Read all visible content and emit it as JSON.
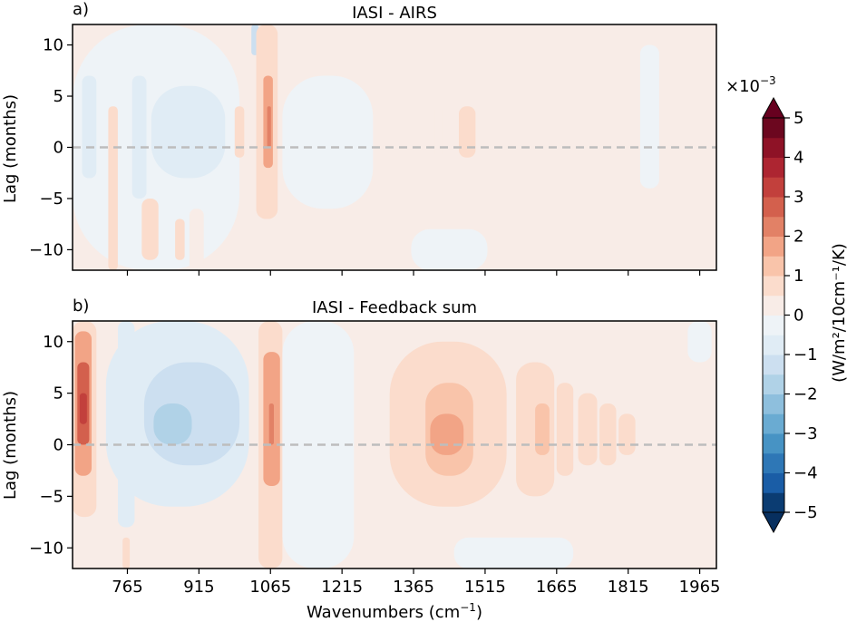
{
  "figure": {
    "xlabel": "Wavenumbers (cm",
    "xlabel_sup": "−1",
    "xlabel_close": ")"
  },
  "colorbar": {
    "multiplier": "×10",
    "multiplier_exp": "−3",
    "label": "(W/m²/10cm⁻¹/K)",
    "tick_labels": [
      "5",
      "4",
      "3",
      "2",
      "1",
      "0",
      "−1",
      "−2",
      "−3",
      "−4",
      "−5"
    ],
    "tick_values": [
      5,
      4,
      3,
      2,
      1,
      0,
      -1,
      -2,
      -3,
      -4,
      -5
    ],
    "levels": [
      -5,
      -4.5,
      -4,
      -3.5,
      -3,
      -2.5,
      -2,
      -1.5,
      -1,
      -0.5,
      0,
      0.5,
      1,
      1.5,
      2,
      2.5,
      3,
      3.5,
      4,
      4.5,
      5
    ],
    "colors": [
      "#0b3c72",
      "#1a5da6",
      "#2e77b6",
      "#4793c4",
      "#6aabd2",
      "#8ebfdd",
      "#b0d2e7",
      "#ccdff0",
      "#e0ecf5",
      "#eef3f7",
      "#f8ece7",
      "#fbdccc",
      "#f9c4aa",
      "#f2a486",
      "#e28166",
      "#d3604d",
      "#c2403c",
      "#ad2531",
      "#8e1226",
      "#6c071f"
    ],
    "extend_low_color": "#072f5f",
    "extend_high_color": "#67001f"
  },
  "chart_data": [
    {
      "type": "heatmap",
      "panel_label": "a)",
      "title": "IASI - AIRS",
      "xlabel": "Wavenumbers (cm⁻¹)",
      "ylabel": "Lag (months)",
      "xlim": [
        650,
        2000
      ],
      "ylim": [
        -12,
        12
      ],
      "xticks": [
        765,
        915,
        1065,
        1215,
        1365,
        1515,
        1665,
        1815,
        1965
      ],
      "xtick_labels_shown": false,
      "yticks": [
        10,
        5,
        0,
        -5,
        -10
      ],
      "ytick_labels": [
        "10",
        "5",
        "0",
        "−5",
        "−10"
      ],
      "zero_lag_line": true,
      "background_value": 0.2,
      "features": [
        {
          "x": [
            650,
            1000
          ],
          "y": [
            -12,
            12
          ],
          "value": -0.2
        },
        {
          "x": [
            670,
            700
          ],
          "y": [
            -3,
            7
          ],
          "value": -0.6
        },
        {
          "x": [
            720,
            790
          ],
          "y": [
            -4,
            3
          ],
          "value": -0.3
        },
        {
          "x": [
            725,
            745
          ],
          "y": [
            -12,
            4
          ],
          "value": 0.5
        },
        {
          "x": [
            775,
            805
          ],
          "y": [
            -5,
            7
          ],
          "value": -0.6
        },
        {
          "x": [
            815,
            970
          ],
          "y": [
            -3,
            6
          ],
          "value": -0.6
        },
        {
          "x": [
            835,
            880
          ],
          "y": [
            -1,
            3
          ],
          "value": -0.9
        },
        {
          "x": [
            795,
            830
          ],
          "y": [
            -11,
            -5
          ],
          "value": 0.5
        },
        {
          "x": [
            865,
            885
          ],
          "y": [
            -11,
            -7
          ],
          "value": 0.5
        },
        {
          "x": [
            895,
            925
          ],
          "y": [
            -12,
            -6
          ],
          "value": 0.4
        },
        {
          "x": [
            990,
            1010
          ],
          "y": [
            -1,
            4
          ],
          "value": 0.5
        },
        {
          "x": [
            1025,
            1040
          ],
          "y": [
            9,
            12
          ],
          "value": -1.1
        },
        {
          "x": [
            1035,
            1080
          ],
          "y": [
            -7,
            12
          ],
          "value": 0.6
        },
        {
          "x": [
            1050,
            1070
          ],
          "y": [
            -2,
            7
          ],
          "value": 1.6
        },
        {
          "x": [
            1058,
            1066
          ],
          "y": [
            0,
            4
          ],
          "value": 2.2
        },
        {
          "x": [
            1090,
            1280
          ],
          "y": [
            -6,
            7
          ],
          "value": -0.2
        },
        {
          "x": [
            1410,
            1425
          ],
          "y": [
            -1,
            4
          ],
          "value": 0.4
        },
        {
          "x": [
            1460,
            1495
          ],
          "y": [
            -1,
            4
          ],
          "value": 0.5
        },
        {
          "x": [
            1360,
            1520
          ],
          "y": [
            -12,
            -8
          ],
          "value": -0.2
        },
        {
          "x": [
            1840,
            1880
          ],
          "y": [
            -4,
            10
          ],
          "value": -0.3
        }
      ]
    },
    {
      "type": "heatmap",
      "panel_label": "b)",
      "title": "IASI - Feedback sum",
      "xlabel": "Wavenumbers (cm⁻¹)",
      "ylabel": "Lag (months)",
      "xlim": [
        650,
        2000
      ],
      "ylim": [
        -12,
        12
      ],
      "xticks": [
        765,
        915,
        1065,
        1215,
        1365,
        1515,
        1665,
        1815,
        1965
      ],
      "xtick_labels": [
        "765",
        "915",
        "1065",
        "1215",
        "1365",
        "1515",
        "1665",
        "1815",
        "1965"
      ],
      "yticks": [
        10,
        5,
        0,
        -5,
        -10
      ],
      "ytick_labels": [
        "10",
        "5",
        "0",
        "−5",
        "−10"
      ],
      "zero_lag_line": true,
      "background_value": 0.2,
      "features": [
        {
          "x": [
            650,
            700
          ],
          "y": [
            -7,
            12
          ],
          "value": 0.8
        },
        {
          "x": [
            655,
            690
          ],
          "y": [
            -3,
            11
          ],
          "value": 1.6
        },
        {
          "x": [
            660,
            685
          ],
          "y": [
            0,
            8
          ],
          "value": 2.6
        },
        {
          "x": [
            665,
            680
          ],
          "y": [
            2,
            5
          ],
          "value": 3.2
        },
        {
          "x": [
            720,
            1020
          ],
          "y": [
            -6,
            12
          ],
          "value": -0.6
        },
        {
          "x": [
            800,
            1000
          ],
          "y": [
            -2,
            8
          ],
          "value": -1.3
        },
        {
          "x": [
            820,
            900
          ],
          "y": [
            0,
            4
          ],
          "value": -1.8
        },
        {
          "x": [
            745,
            780
          ],
          "y": [
            -8,
            12
          ],
          "value": -0.8
        },
        {
          "x": [
            755,
            770
          ],
          "y": [
            -12,
            -9
          ],
          "value": 0.6
        },
        {
          "x": [
            1040,
            1090
          ],
          "y": [
            -12,
            12
          ],
          "value": 0.6
        },
        {
          "x": [
            1050,
            1085
          ],
          "y": [
            -4,
            9
          ],
          "value": 1.6
        },
        {
          "x": [
            1062,
            1072
          ],
          "y": [
            0,
            4
          ],
          "value": 2.3
        },
        {
          "x": [
            1090,
            1240
          ],
          "y": [
            -12,
            12
          ],
          "value": -0.2
        },
        {
          "x": [
            1100,
            1150
          ],
          "y": [
            -3,
            7
          ],
          "value": -0.5
        },
        {
          "x": [
            1315,
            1560
          ],
          "y": [
            -6,
            10
          ],
          "value": 0.7
        },
        {
          "x": [
            1390,
            1490
          ],
          "y": [
            -3,
            6
          ],
          "value": 1.3
        },
        {
          "x": [
            1400,
            1470
          ],
          "y": [
            -1,
            3
          ],
          "value": 1.7
        },
        {
          "x": [
            1580,
            1660
          ],
          "y": [
            -5,
            8
          ],
          "value": 0.6
        },
        {
          "x": [
            1620,
            1650
          ],
          "y": [
            -1,
            4
          ],
          "value": 1.1
        },
        {
          "x": [
            1665,
            1700
          ],
          "y": [
            -3,
            6
          ],
          "value": 0.6
        },
        {
          "x": [
            1710,
            1750
          ],
          "y": [
            -2,
            5
          ],
          "value": 0.55
        },
        {
          "x": [
            1755,
            1790
          ],
          "y": [
            -2,
            4
          ],
          "value": 0.55
        },
        {
          "x": [
            1795,
            1830
          ],
          "y": [
            -1,
            3
          ],
          "value": 0.5
        },
        {
          "x": [
            1450,
            1700
          ],
          "y": [
            -12,
            -9
          ],
          "value": -0.2
        },
        {
          "x": [
            1940,
            1990
          ],
          "y": [
            8,
            12
          ],
          "value": -0.2
        }
      ]
    }
  ]
}
